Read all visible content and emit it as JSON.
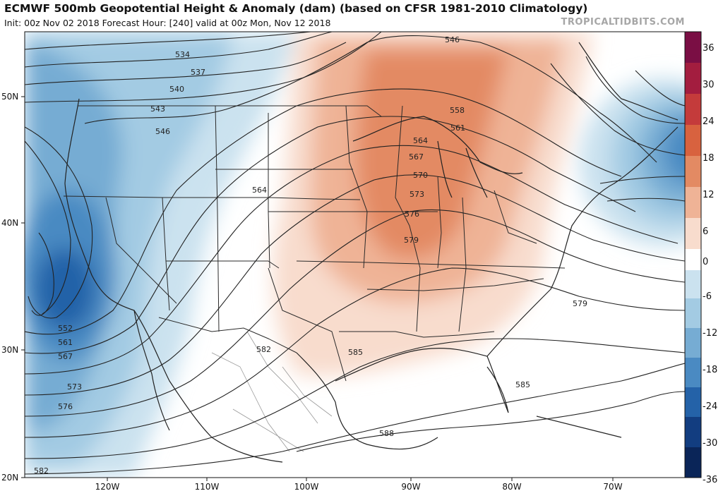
{
  "header": {
    "title": "ECMWF 500mb Geopotential Height & Anomaly (dam) (based on CFSR 1981-2010 Climatology)",
    "subtitle": "Init: 00z Nov 02 2018   Forecast Hour: [240]   valid at 00z Mon, Nov 12 2018",
    "credit": "TROPICALTIDBITS.COM"
  },
  "map": {
    "lat_labels": [
      "50N",
      "40N",
      "30N",
      "20N"
    ],
    "lon_labels": [
      "120W",
      "110W",
      "100W",
      "90W",
      "80W",
      "70W"
    ],
    "contour_labels": [
      "534",
      "537",
      "540",
      "543",
      "546",
      "546",
      "558",
      "561",
      "564",
      "567",
      "570",
      "573",
      "576",
      "579",
      "564",
      "552",
      "561",
      "567",
      "573",
      "576",
      "582",
      "582",
      "585",
      "585",
      "579",
      "588"
    ]
  },
  "colorbar": {
    "labels": [
      "36",
      "30",
      "24",
      "18",
      "12",
      "6",
      "0",
      "-6",
      "-12",
      "-18",
      "-24",
      "-30",
      "-36"
    ],
    "colors": [
      "#7a0e44",
      "#a31d3f",
      "#c43b3b",
      "#d8623f",
      "#e38a63",
      "#efb396",
      "#f8dccd",
      "#ffffff",
      "#cbe2ef",
      "#a3cbe3",
      "#76acd3",
      "#4a8ac2",
      "#2462a8",
      "#123d80",
      "#0a2558"
    ]
  }
}
